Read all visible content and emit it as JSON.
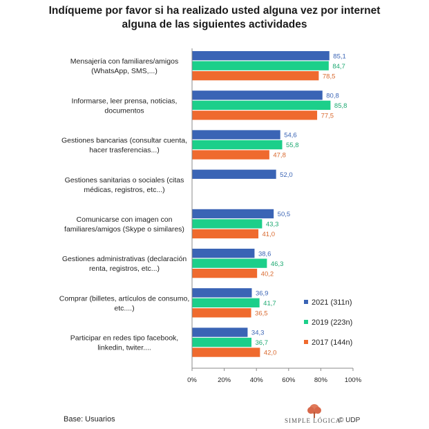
{
  "title": {
    "line1": "Indíqueme por favor si ha realizado usted alguna vez por internet",
    "line2": "alguna de las siguientes actividades"
  },
  "chart_data": {
    "type": "bar",
    "orientation": "horizontal",
    "title": "Indíqueme por favor si ha realizado usted alguna vez por internet alguna de las siguientes actividades",
    "categories": [
      [
        "Mensajería con familiares/amigos",
        "(WhatsApp, SMS,...)"
      ],
      [
        "Informarse, leer prensa, noticias,",
        "documentos"
      ],
      [
        "Gestiones bancarias (consultar cuenta,",
        "hacer trasferencias...)"
      ],
      [
        "Gestiones sanitarias o sociales (citas",
        "médicas, registros, etc...)"
      ],
      [
        "Comunicarse con imagen con",
        "familiares/amigos (Skype o similares)"
      ],
      [
        "Gestiones administrativas (declaración",
        "renta,  registros, etc...)"
      ],
      [
        "Comprar (billetes, artículos de consumo,",
        "etc....)"
      ],
      [
        "Participar en redes tipo facebook,",
        "linkedin, twiter...."
      ]
    ],
    "series": [
      {
        "name": "2021 (311n)",
        "color": "#3a64b5",
        "values": [
          85.1,
          80.8,
          54.6,
          52.0,
          50.5,
          38.6,
          36.9,
          34.3
        ],
        "labels": [
          "85,1",
          "80,8",
          "54,6",
          "52,0",
          "50,5",
          "38,6",
          "36,9",
          "34,3"
        ]
      },
      {
        "name": "2019 (223n)",
        "color": "#1ccf8a",
        "values": [
          84.7,
          85.8,
          55.8,
          null,
          43.3,
          46.3,
          41.7,
          36.7
        ],
        "labels": [
          "84,7",
          "85,8",
          "55,8",
          null,
          "43,3",
          "46,3",
          "41,7",
          "36,7"
        ]
      },
      {
        "name": "2017 (144n)",
        "color": "#ef6a2e",
        "values": [
          78.5,
          77.5,
          47.8,
          null,
          41.0,
          40.2,
          36.5,
          42.0
        ],
        "labels": [
          "78,5",
          "77,5",
          "47,8",
          null,
          "41,0",
          "40,2",
          "36,5",
          "42,0"
        ]
      }
    ],
    "label_colors": {
      "2021 (311n)": "#3a64b5",
      "2019 (223n)": "#1ba870",
      "2017 (144n)": "#d9692e"
    },
    "xlim": [
      0,
      100
    ],
    "xticks": [
      "0%",
      "20%",
      "40%",
      "60%",
      "80%",
      "100%"
    ],
    "xtick_values": [
      0,
      20,
      40,
      60,
      80,
      100
    ],
    "legend": "right",
    "grid": false
  },
  "footer": {
    "base": "Base: Usuarios",
    "logo_text": "SIMPLE LÓGICA",
    "logo_udp": "© UDP"
  }
}
